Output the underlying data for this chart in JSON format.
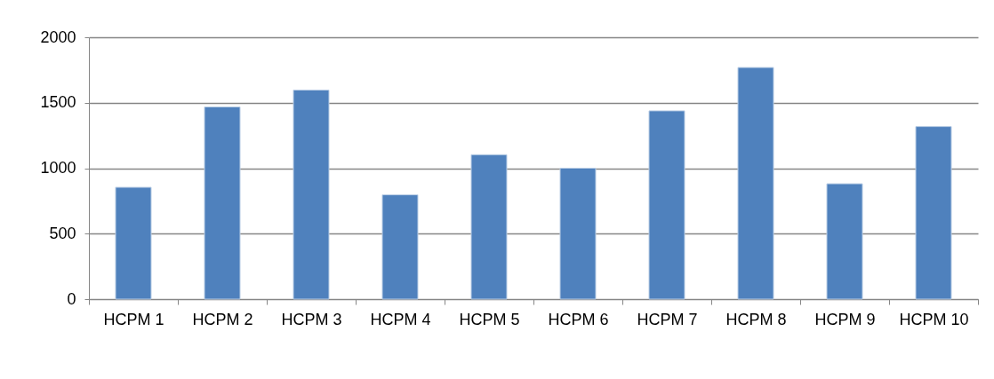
{
  "chart_data": {
    "type": "bar",
    "categories": [
      "HCPM 1",
      "HCPM 2",
      "HCPM 3",
      "HCPM 4",
      "HCPM 5",
      "HCPM 6",
      "HCPM 7",
      "HCPM 8",
      "HCPM 9",
      "HCPM 10"
    ],
    "values": [
      854,
      1468,
      1597,
      797,
      1103,
      1000,
      1438,
      1769,
      881,
      1318
    ],
    "color": "#4f81bd",
    "ylim": [
      0,
      2000
    ],
    "yticks": [
      0,
      500,
      1000,
      1500,
      2000
    ],
    "grid": "y"
  }
}
